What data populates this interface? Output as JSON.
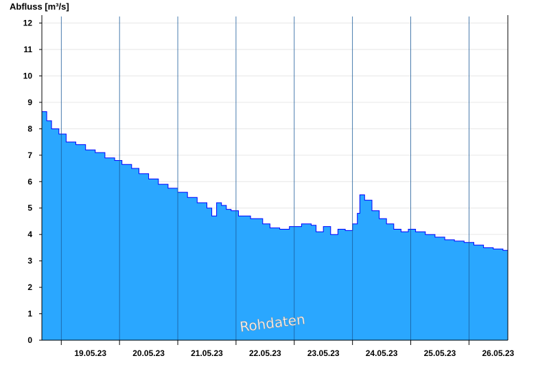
{
  "chart_data": {
    "type": "area",
    "ylabel": "Abfluss [m³/s]",
    "watermark": "Rohdaten",
    "ylim": [
      0,
      12.3
    ],
    "yticks": [
      0,
      1,
      2,
      3,
      4,
      5,
      6,
      7,
      8,
      9,
      10,
      11,
      12
    ],
    "xlim": [
      "2023-05-18T16:00",
      "2023-05-26T16:00"
    ],
    "day_boundaries": [
      "2023-05-19",
      "2023-05-20",
      "2023-05-21",
      "2023-05-22",
      "2023-05-23",
      "2023-05-24",
      "2023-05-25",
      "2023-05-26"
    ],
    "xtick_labels": [
      "19.05.23",
      "20.05.23",
      "21.05.23",
      "22.05.23",
      "23.05.23",
      "24.05.23",
      "25.05.23",
      "26.05.23"
    ],
    "grid": true,
    "fill_color": "#2aa7ff",
    "line_color": "#0000ff",
    "series": [
      {
        "x": [
          "2023-05-18T16:00",
          "2023-05-18T18:00",
          "2023-05-18T20:00",
          "2023-05-18T23:00",
          "2023-05-19T02:00",
          "2023-05-19T06:00",
          "2023-05-19T10:00",
          "2023-05-19T14:00",
          "2023-05-19T18:00",
          "2023-05-19T22:00",
          "2023-05-20T01:00",
          "2023-05-20T05:00",
          "2023-05-20T08:00",
          "2023-05-20T12:00",
          "2023-05-20T16:00",
          "2023-05-20T20:00",
          "2023-05-21T00:00",
          "2023-05-21T04:00",
          "2023-05-21T08:00",
          "2023-05-21T12:00",
          "2023-05-21T14:00",
          "2023-05-21T16:00",
          "2023-05-21T18:00",
          "2023-05-21T20:00",
          "2023-05-21T22:00",
          "2023-05-22T01:00",
          "2023-05-22T06:00",
          "2023-05-22T11:00",
          "2023-05-22T14:00",
          "2023-05-22T18:00",
          "2023-05-22T22:00",
          "2023-05-23T03:00",
          "2023-05-23T07:00",
          "2023-05-23T09:00",
          "2023-05-23T12:00",
          "2023-05-23T15:00",
          "2023-05-23T18:00",
          "2023-05-23T21:00",
          "2023-05-24T00:00",
          "2023-05-24T02:00",
          "2023-05-24T03:00",
          "2023-05-24T05:00",
          "2023-05-24T08:00",
          "2023-05-24T11:00",
          "2023-05-24T14:00",
          "2023-05-24T17:00",
          "2023-05-24T20:00",
          "2023-05-24T23:00",
          "2023-05-25T02:00",
          "2023-05-25T06:00",
          "2023-05-25T10:00",
          "2023-05-25T14:00",
          "2023-05-25T18:00",
          "2023-05-25T22:00",
          "2023-05-26T02:00",
          "2023-05-26T06:00",
          "2023-05-26T10:00",
          "2023-05-26T14:00",
          "2023-05-26T16:00"
        ],
        "y": [
          8.65,
          8.3,
          8.0,
          7.8,
          7.5,
          7.4,
          7.2,
          7.1,
          6.9,
          6.8,
          6.65,
          6.5,
          6.3,
          6.1,
          5.9,
          5.75,
          5.6,
          5.4,
          5.2,
          5.0,
          4.7,
          5.2,
          5.1,
          4.95,
          4.9,
          4.7,
          4.6,
          4.4,
          4.25,
          4.2,
          4.3,
          4.4,
          4.35,
          4.1,
          4.3,
          4.0,
          4.2,
          4.15,
          4.4,
          4.8,
          5.5,
          5.3,
          4.9,
          4.6,
          4.4,
          4.2,
          4.1,
          4.2,
          4.1,
          4.0,
          3.9,
          3.8,
          3.75,
          3.7,
          3.6,
          3.5,
          3.45,
          3.4,
          3.35
        ]
      }
    ]
  }
}
